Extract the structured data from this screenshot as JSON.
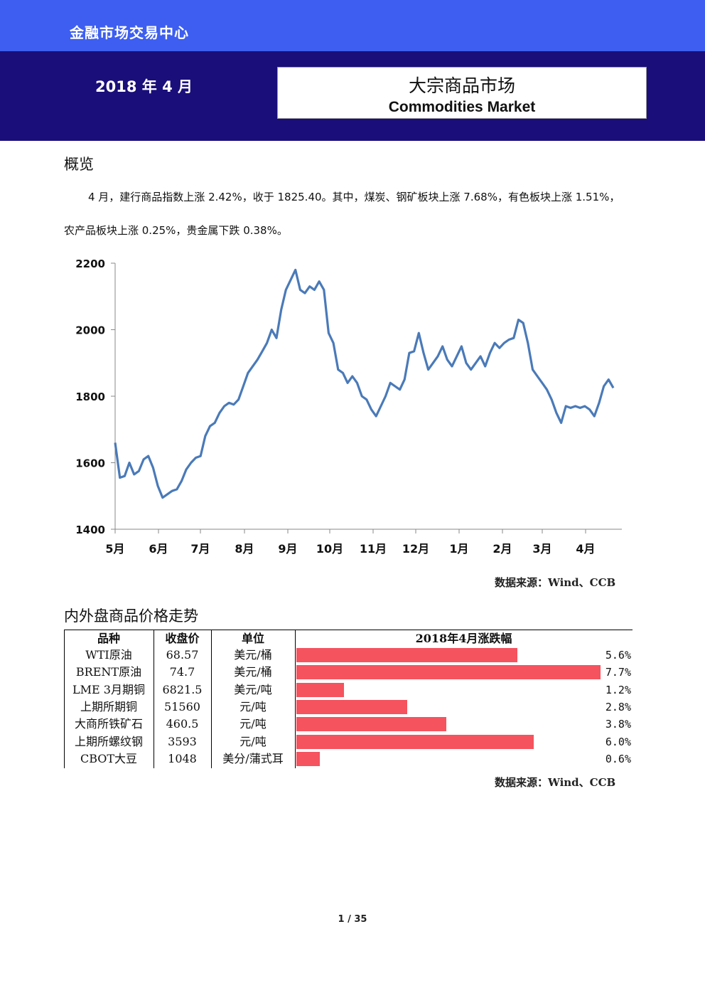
{
  "header": {
    "department": "金融市场交易中心",
    "date": "2018 年 4 月",
    "title_cn": "大宗商品市场",
    "title_en": "Commodities Market"
  },
  "overview": {
    "heading": "概览",
    "line1": "4 月，建行商品指数上涨 2.42%，收于 1825.40。其中，煤炭、钢矿板块上涨 7.68%，有色板块上涨 1.51%，",
    "line2": "农产品板块上涨 0.25%，贵金属下跌 0.38%。"
  },
  "chart_source": "数据来源：Wind、CCB",
  "chart_data": {
    "type": "line",
    "title": "",
    "xlabel": "",
    "ylabel": "",
    "ylim": [
      1400,
      2200
    ],
    "yticks": [
      1400,
      1600,
      1800,
      2000,
      2200
    ],
    "xticks": [
      "5月",
      "6月",
      "7月",
      "8月",
      "9月",
      "10月",
      "11月",
      "12月",
      "1月",
      "2月",
      "3月",
      "4月"
    ],
    "grid": false,
    "color": "#4a7ab8",
    "series": [
      {
        "x_period": "2017-05-01 to 2018-04-30",
        "values": [
          1660,
          1555,
          1560,
          1600,
          1565,
          1575,
          1610,
          1620,
          1585,
          1530,
          1495,
          1505,
          1515,
          1520,
          1545,
          1580,
          1600,
          1615,
          1620,
          1680,
          1710,
          1720,
          1750,
          1770,
          1780,
          1775,
          1790,
          1830,
          1870,
          1890,
          1910,
          1935,
          1960,
          2000,
          1975,
          2060,
          2120,
          2150,
          2180,
          2120,
          2110,
          2130,
          2120,
          2145,
          2120,
          1990,
          1960,
          1880,
          1870,
          1840,
          1860,
          1840,
          1800,
          1790,
          1760,
          1740,
          1770,
          1800,
          1840,
          1830,
          1820,
          1850,
          1930,
          1935,
          1990,
          1930,
          1880,
          1900,
          1920,
          1950,
          1910,
          1890,
          1920,
          1950,
          1900,
          1880,
          1900,
          1920,
          1890,
          1930,
          1960,
          1945,
          1960,
          1970,
          1975,
          2030,
          2020,
          1960,
          1880,
          1860,
          1840,
          1820,
          1790,
          1750,
          1720,
          1770,
          1765,
          1770,
          1765,
          1770,
          1760,
          1740,
          1780,
          1830,
          1850,
          1825
        ]
      }
    ]
  },
  "table_section": {
    "heading": "内外盘商品价格走势",
    "headers": [
      "品种",
      "收盘价",
      "单位",
      "2018年4月涨跌幅"
    ],
    "rows": [
      {
        "name": "WTI原油",
        "price": "68.57",
        "unit": "美元/桶",
        "change_label": "5.6%",
        "change": 5.6
      },
      {
        "name": "BRENT原油",
        "price": "74.7",
        "unit": "美元/桶",
        "change_label": "7.7%",
        "change": 7.7
      },
      {
        "name": "LME 3月期铜",
        "price": "6821.5",
        "unit": "美元/吨",
        "change_label": "1.2%",
        "change": 1.2
      },
      {
        "name": "上期所期铜",
        "price": "51560",
        "unit": "元/吨",
        "change_label": "2.8%",
        "change": 2.8
      },
      {
        "name": "大商所铁矿石",
        "price": "460.5",
        "unit": "元/吨",
        "change_label": "3.8%",
        "change": 3.8
      },
      {
        "name": "上期所螺纹钢",
        "price": "3593",
        "unit": "元/吨",
        "change_label": "6.0%",
        "change": 6.0
      },
      {
        "name": "CBOT大豆",
        "price": "1048",
        "unit": "美分/蒲式耳",
        "change_label": "0.6%",
        "change": 0.6
      }
    ],
    "bar_color": "#f5535e",
    "source": "数据来源：Wind、CCB"
  },
  "page_number": "1 / 35"
}
